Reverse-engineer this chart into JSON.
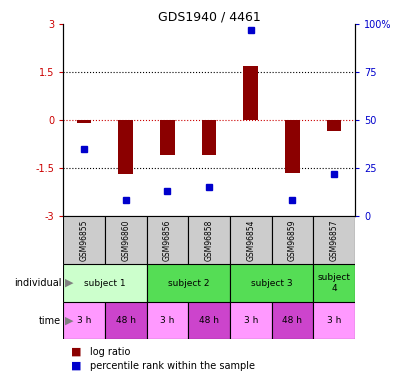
{
  "title": "GDS1940 / 4461",
  "samples": [
    "GSM96855",
    "GSM96860",
    "GSM96856",
    "GSM96858",
    "GSM96854",
    "GSM96859",
    "GSM96857"
  ],
  "log_ratio": [
    -0.1,
    -1.7,
    -1.1,
    -1.1,
    1.7,
    -1.65,
    -0.35
  ],
  "percentile_rank": [
    35,
    8,
    13,
    15,
    97,
    8,
    22
  ],
  "ylim_left": [
    -3,
    3
  ],
  "yticks_left": [
    -3,
    -1.5,
    0,
    1.5,
    3
  ],
  "ylim_right": [
    0,
    100
  ],
  "yticks_right": [
    0,
    25,
    50,
    75,
    100
  ],
  "bar_color": "#8B0000",
  "dot_color": "#0000CC",
  "zero_line_color": "#CC0000",
  "subject1_color": "#CCFFCC",
  "subject2_color": "#55DD55",
  "subject3_color": "#55DD55",
  "subject4_color": "#55DD55",
  "time_light_color": "#FF99FF",
  "time_dark_color": "#CC44CC",
  "sample_box_color": "#CCCCCC",
  "legend_bar_color": "#8B0000",
  "legend_dot_color": "#0000CC",
  "legend_log_ratio": "log ratio",
  "legend_percentile": "percentile rank within the sample"
}
